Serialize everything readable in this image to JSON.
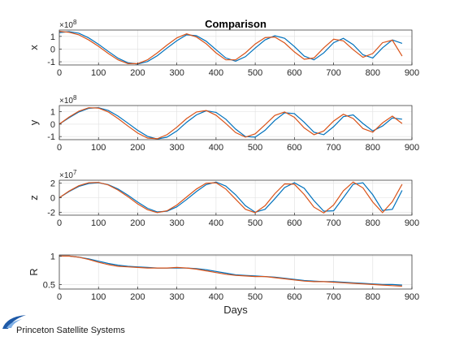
{
  "title": "Comparison",
  "logo": {
    "text": "Princeton Satellite Systems"
  },
  "colors": {
    "series1": "#0072BD",
    "series2": "#D95319",
    "grid": "#dfdfdf",
    "axis": "#262626"
  },
  "chart_data": [
    {
      "type": "line",
      "ylabel": "x",
      "exponent_label": "×10",
      "exponent_power": "8",
      "xlim": [
        0,
        900
      ],
      "ylim": [
        -1.25,
        1.5
      ],
      "scale": 100000000.0,
      "xticks": [
        0,
        100,
        200,
        300,
        400,
        500,
        600,
        700,
        800,
        900
      ],
      "yticks": [
        -1,
        0,
        1
      ],
      "grid": true,
      "series": [
        {
          "x": [
            0,
            25,
            50,
            75,
            100,
            125,
            150,
            175,
            200,
            225,
            250,
            275,
            300,
            325,
            350,
            375,
            400,
            425,
            450,
            475,
            500,
            525,
            550,
            575,
            600,
            625,
            650,
            675,
            700,
            725,
            750,
            775,
            800,
            825,
            850,
            875
          ],
          "y": [
            1.3,
            1.37,
            1.25,
            0.88,
            0.38,
            -0.18,
            -0.72,
            -1.08,
            -1.18,
            -0.98,
            -0.52,
            0.08,
            0.66,
            1.12,
            1.05,
            0.62,
            -0.05,
            -0.7,
            -0.95,
            -0.6,
            0.08,
            0.72,
            1.05,
            0.85,
            0.2,
            -0.55,
            -0.85,
            -0.3,
            0.5,
            0.85,
            0.35,
            -0.45,
            -0.7,
            0.1,
            0.72,
            0.45
          ]
        },
        {
          "x": [
            0,
            25,
            50,
            75,
            100,
            125,
            150,
            175,
            200,
            225,
            250,
            275,
            300,
            325,
            350,
            375,
            400,
            425,
            450,
            475,
            500,
            525,
            550,
            575,
            600,
            625,
            650,
            675,
            700,
            725,
            750,
            775,
            800,
            825,
            850,
            875
          ],
          "y": [
            1.4,
            1.32,
            1.12,
            0.72,
            0.22,
            -0.35,
            -0.85,
            -1.15,
            -1.15,
            -0.85,
            -0.3,
            0.32,
            0.88,
            1.2,
            0.95,
            0.42,
            -0.3,
            -0.85,
            -0.85,
            -0.3,
            0.4,
            0.9,
            0.95,
            0.48,
            -0.22,
            -0.8,
            -0.7,
            0.1,
            0.78,
            0.65,
            -0.05,
            -0.65,
            -0.35,
            0.5,
            0.7,
            -0.55
          ]
        }
      ]
    },
    {
      "type": "line",
      "ylabel": "y",
      "exponent_label": "×10",
      "exponent_power": "8",
      "xlim": [
        0,
        900
      ],
      "ylim": [
        -1.25,
        1.5
      ],
      "scale": 100000000.0,
      "xticks": [
        0,
        100,
        200,
        300,
        400,
        500,
        600,
        700,
        800,
        900
      ],
      "yticks": [
        -1,
        0,
        1
      ],
      "grid": true,
      "series": [
        {
          "x": [
            0,
            25,
            50,
            75,
            100,
            125,
            150,
            175,
            200,
            225,
            250,
            275,
            300,
            325,
            350,
            375,
            400,
            425,
            450,
            475,
            500,
            525,
            550,
            575,
            600,
            625,
            650,
            675,
            700,
            725,
            750,
            775,
            800,
            825,
            850,
            875
          ],
          "y": [
            0.0,
            0.52,
            0.98,
            1.28,
            1.33,
            1.1,
            0.65,
            0.08,
            -0.5,
            -0.98,
            -1.2,
            -1.05,
            -0.55,
            0.15,
            0.75,
            1.08,
            0.95,
            0.4,
            -0.4,
            -1.0,
            -1.05,
            -0.5,
            0.3,
            0.92,
            0.85,
            0.15,
            -0.65,
            -0.85,
            -0.2,
            0.6,
            0.75,
            0.05,
            -0.55,
            -0.15,
            0.5,
            0.4
          ]
        },
        {
          "x": [
            0,
            25,
            50,
            75,
            100,
            125,
            150,
            175,
            200,
            225,
            250,
            275,
            300,
            325,
            350,
            375,
            400,
            425,
            450,
            475,
            500,
            525,
            550,
            575,
            600,
            625,
            650,
            675,
            700,
            725,
            750,
            775,
            800,
            825,
            850,
            875
          ],
          "y": [
            0.0,
            0.58,
            1.05,
            1.32,
            1.3,
            0.98,
            0.45,
            -0.15,
            -0.72,
            -1.12,
            -1.18,
            -0.85,
            -0.25,
            0.45,
            0.98,
            1.1,
            0.72,
            0.05,
            -0.68,
            -1.05,
            -0.78,
            -0.05,
            0.7,
            0.98,
            0.55,
            -0.3,
            -0.85,
            -0.55,
            0.25,
            0.8,
            0.45,
            -0.35,
            -0.65,
            0.1,
            0.65,
            0.05
          ]
        }
      ]
    },
    {
      "type": "line",
      "ylabel": "z",
      "exponent_label": "×10",
      "exponent_power": "7",
      "xlim": [
        0,
        900
      ],
      "ylim": [
        -2.4,
        2.4
      ],
      "scale": 10000000.0,
      "xticks": [
        0,
        100,
        200,
        300,
        400,
        500,
        600,
        700,
        800,
        900
      ],
      "yticks": [
        -2,
        0,
        2
      ],
      "grid": true,
      "series": [
        {
          "x": [
            0,
            25,
            50,
            75,
            100,
            125,
            150,
            175,
            200,
            225,
            250,
            275,
            300,
            325,
            350,
            375,
            400,
            425,
            450,
            475,
            500,
            525,
            550,
            575,
            600,
            625,
            650,
            675,
            700,
            725,
            750,
            775,
            800,
            825,
            850,
            875
          ],
          "y": [
            0.0,
            0.85,
            1.55,
            1.95,
            2.05,
            1.8,
            1.2,
            0.35,
            -0.6,
            -1.45,
            -1.95,
            -1.85,
            -1.25,
            -0.25,
            0.85,
            1.8,
            2.15,
            1.6,
            0.4,
            -1.1,
            -2.0,
            -1.6,
            -0.15,
            1.4,
            2.05,
            1.3,
            -0.4,
            -1.85,
            -1.8,
            0.0,
            1.85,
            2.05,
            0.4,
            -1.75,
            -1.6,
            1.0
          ]
        },
        {
          "x": [
            0,
            25,
            50,
            75,
            100,
            125,
            150,
            175,
            200,
            225,
            250,
            275,
            300,
            325,
            350,
            375,
            400,
            425,
            450,
            475,
            500,
            525,
            550,
            575,
            600,
            625,
            650,
            675,
            700,
            725,
            750,
            775,
            800,
            825,
            850,
            875
          ],
          "y": [
            0.0,
            0.92,
            1.65,
            2.05,
            2.1,
            1.75,
            1.05,
            0.15,
            -0.85,
            -1.65,
            -2.05,
            -1.8,
            -1.0,
            0.1,
            1.2,
            2.0,
            2.05,
            1.2,
            -0.2,
            -1.6,
            -2.05,
            -1.1,
            0.55,
            1.9,
            1.85,
            0.45,
            -1.3,
            -2.1,
            -1.0,
            0.95,
            2.15,
            1.35,
            -0.6,
            -2.05,
            -0.55,
            1.85
          ]
        }
      ]
    },
    {
      "type": "line",
      "ylabel": "R",
      "xlabel": "Days",
      "xlim": [
        0,
        900
      ],
      "ylim": [
        0.42,
        1.02
      ],
      "scale": 1,
      "xticks": [
        0,
        100,
        200,
        300,
        400,
        500,
        600,
        700,
        800,
        900
      ],
      "yticks": [
        0.5,
        1
      ],
      "grid": true,
      "series": [
        {
          "x": [
            0,
            25,
            50,
            75,
            100,
            125,
            150,
            175,
            200,
            225,
            250,
            275,
            300,
            325,
            350,
            375,
            400,
            425,
            450,
            475,
            500,
            525,
            550,
            575,
            600,
            625,
            650,
            675,
            700,
            725,
            750,
            775,
            800,
            825,
            850,
            875
          ],
          "y": [
            1.0,
            1.0,
            0.98,
            0.95,
            0.91,
            0.87,
            0.84,
            0.82,
            0.81,
            0.8,
            0.79,
            0.79,
            0.79,
            0.79,
            0.78,
            0.76,
            0.73,
            0.7,
            0.67,
            0.66,
            0.65,
            0.64,
            0.63,
            0.61,
            0.59,
            0.57,
            0.56,
            0.55,
            0.55,
            0.54,
            0.53,
            0.52,
            0.51,
            0.5,
            0.5,
            0.49
          ]
        },
        {
          "x": [
            0,
            25,
            50,
            75,
            100,
            125,
            150,
            175,
            200,
            225,
            250,
            275,
            300,
            325,
            350,
            375,
            400,
            425,
            450,
            475,
            500,
            525,
            550,
            575,
            600,
            625,
            650,
            675,
            700,
            725,
            750,
            775,
            800,
            825,
            850,
            875
          ],
          "y": [
            1.0,
            1.0,
            0.98,
            0.94,
            0.89,
            0.85,
            0.82,
            0.81,
            0.8,
            0.79,
            0.79,
            0.79,
            0.8,
            0.79,
            0.77,
            0.74,
            0.71,
            0.68,
            0.66,
            0.65,
            0.64,
            0.64,
            0.62,
            0.6,
            0.58,
            0.56,
            0.55,
            0.55,
            0.54,
            0.53,
            0.52,
            0.51,
            0.5,
            0.49,
            0.48,
            0.47
          ]
        }
      ]
    }
  ]
}
